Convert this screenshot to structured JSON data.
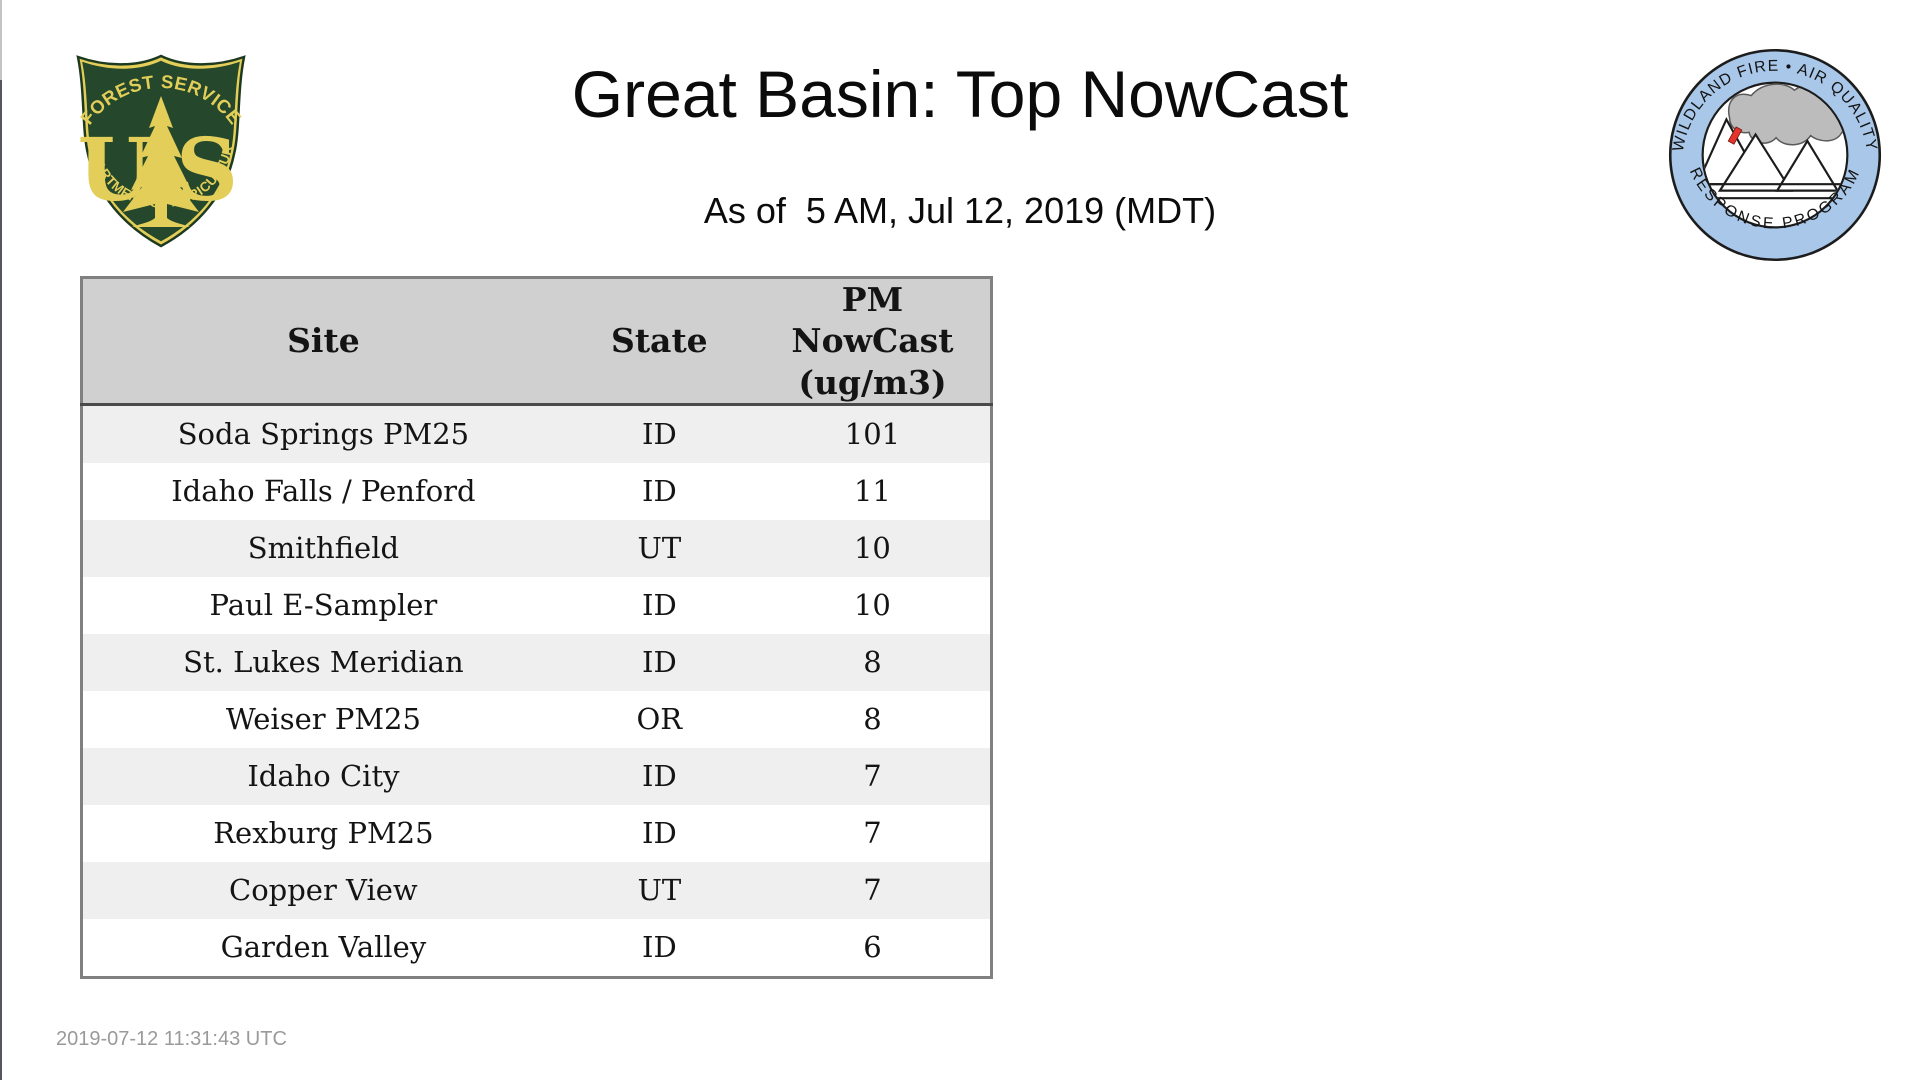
{
  "page": {
    "title": "Great Basin: Top NowCast",
    "subtitle": "As of  5 AM, Jul 12, 2019 (MDT)",
    "footer_timestamp": "2019-07-12 11:31:43 UTC"
  },
  "logos": {
    "forest_service": {
      "top_text": "FOREST SERVICE",
      "letter_left": "U",
      "letter_right": "S",
      "bottom_text": "DEPARTMENT OF AGRICULTURE",
      "green": "#25472B",
      "gold": "#E2CE58"
    },
    "air_quality": {
      "top_text": "WILDLAND FIRE • AIR QUALITY",
      "bottom_text": "RESPONSE PROGRAM",
      "ring_color": "#A9C7E9",
      "smoke_color": "#BCBCBC",
      "flame_color": "#E5342B"
    }
  },
  "table": {
    "headers": {
      "site": "Site",
      "state": "State",
      "value": "PM\nNowCast\n(ug/m3)"
    },
    "rows": [
      {
        "site": "Soda Springs PM25",
        "state": "ID",
        "value": "101"
      },
      {
        "site": "Idaho Falls / Penford",
        "state": "ID",
        "value": "11"
      },
      {
        "site": "Smithfield",
        "state": "UT",
        "value": "10"
      },
      {
        "site": "Paul E-Sampler",
        "state": "ID",
        "value": "10"
      },
      {
        "site": "St. Lukes Meridian",
        "state": "ID",
        "value": "8"
      },
      {
        "site": "Weiser PM25",
        "state": "OR",
        "value": "8"
      },
      {
        "site": "Idaho City",
        "state": "ID",
        "value": "7"
      },
      {
        "site": "Rexburg PM25",
        "state": "ID",
        "value": "7"
      },
      {
        "site": "Copper View",
        "state": "UT",
        "value": "7"
      },
      {
        "site": "Garden Valley",
        "state": "ID",
        "value": "6"
      }
    ],
    "colors": {
      "header_bg": "#D0D0D0",
      "zebra_bg": "#EFEFEF",
      "border": "#808080",
      "header_rule": "#4A4A4A"
    }
  }
}
